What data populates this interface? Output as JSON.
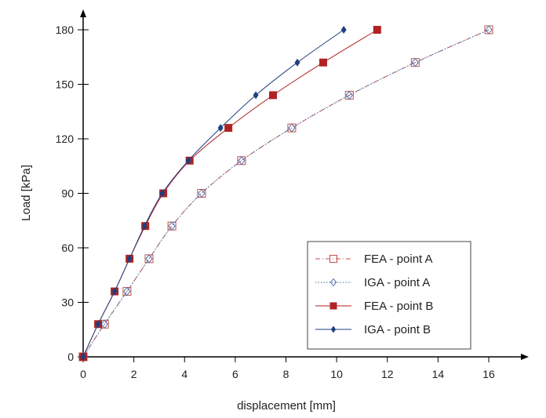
{
  "chart_data": {
    "type": "line",
    "title": "",
    "xlabel": "displacement [mm]",
    "ylabel": "Load [kPa]",
    "xlim": [
      0,
      16
    ],
    "ylim": [
      0,
      180
    ],
    "xticks": [
      0,
      2,
      4,
      6,
      8,
      10,
      12,
      14,
      16
    ],
    "yticks": [
      0,
      30,
      60,
      90,
      120,
      150,
      180
    ],
    "grid": false,
    "legend_position": "bottom-right",
    "series": [
      {
        "name": "FEA - point A",
        "color": "#c0504d",
        "marker": "open-square",
        "line": "dash-dot",
        "x": [
          0,
          0.84,
          1.73,
          2.6,
          3.5,
          4.67,
          6.25,
          8.23,
          10.5,
          13.1,
          16.0
        ],
        "y": [
          0,
          18,
          36,
          54,
          72,
          90,
          108,
          126,
          144,
          162,
          180
        ]
      },
      {
        "name": "IGA - point A",
        "color": "#4f6fa8",
        "marker": "open-diamond",
        "line": "dotted",
        "x": [
          0,
          0.84,
          1.73,
          2.6,
          3.5,
          4.67,
          6.25,
          8.23,
          10.5,
          13.1,
          16.0
        ],
        "y": [
          0,
          18,
          36,
          54,
          72,
          90,
          108,
          126,
          144,
          162,
          180
        ]
      },
      {
        "name": "FEA - point B",
        "color": "#b22222",
        "marker": "filled-square",
        "line": "solid",
        "x": [
          0,
          0.59,
          1.24,
          1.83,
          2.45,
          3.16,
          4.2,
          5.73,
          7.49,
          9.47,
          11.6
        ],
        "y": [
          0,
          18,
          36,
          54,
          72,
          90,
          108,
          126,
          144,
          162,
          180
        ]
      },
      {
        "name": "IGA - point B",
        "color": "#1f3f7f",
        "marker": "filled-diamond",
        "line": "solid",
        "x": [
          0,
          0.59,
          1.24,
          1.83,
          2.42,
          3.12,
          4.15,
          5.42,
          6.81,
          8.45,
          10.28
        ],
        "y": [
          0,
          18,
          36,
          54,
          72,
          90,
          108,
          126,
          144,
          162,
          180
        ]
      }
    ]
  }
}
